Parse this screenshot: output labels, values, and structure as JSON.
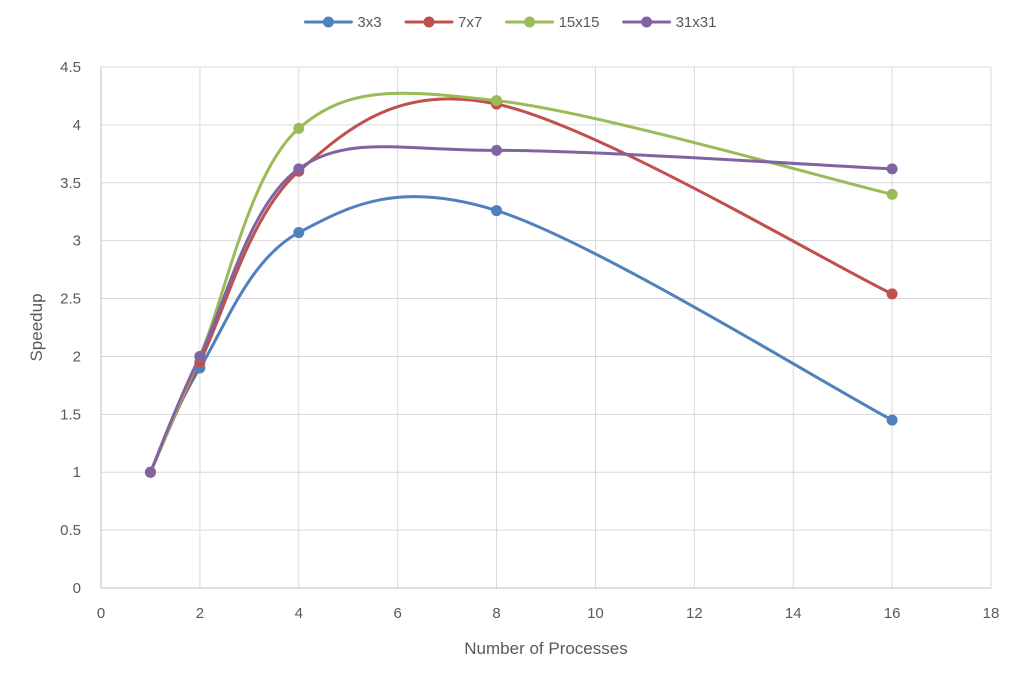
{
  "chart_data": {
    "type": "line",
    "title": "",
    "xlabel": "Number of Processes",
    "ylabel": "Speedup",
    "xlim": [
      0,
      18
    ],
    "ylim": [
      0,
      4.5
    ],
    "x_ticks": [
      0,
      2,
      4,
      6,
      8,
      10,
      12,
      14,
      16,
      18
    ],
    "y_ticks": [
      0,
      0.5,
      1,
      1.5,
      2,
      2.5,
      3,
      3.5,
      4,
      4.5
    ],
    "x_tick_labels": [
      "0",
      "2",
      "4",
      "6",
      "8",
      "10",
      "12",
      "14",
      "16",
      "18"
    ],
    "y_tick_labels": [
      "0",
      "0.5",
      "1",
      "1.5",
      "2",
      "2.5",
      "3",
      "3.5",
      "4",
      "4.5"
    ],
    "x": [
      1,
      2,
      4,
      8,
      16
    ],
    "smooth": true,
    "grid": true,
    "legend_position": "top",
    "series": [
      {
        "name": "3x3",
        "color": "#4f81bd",
        "values": [
          1.0,
          1.9,
          3.07,
          3.26,
          1.45
        ]
      },
      {
        "name": "7x7",
        "color": "#c0504d",
        "values": [
          1.0,
          1.95,
          3.6,
          4.18,
          2.54
        ]
      },
      {
        "name": "15x15",
        "color": "#9bbb59",
        "values": [
          1.0,
          2.0,
          3.97,
          4.21,
          3.4
        ]
      },
      {
        "name": "31x31",
        "color": "#8064a2",
        "values": [
          1.0,
          2.0,
          3.62,
          3.78,
          3.62
        ]
      }
    ]
  }
}
